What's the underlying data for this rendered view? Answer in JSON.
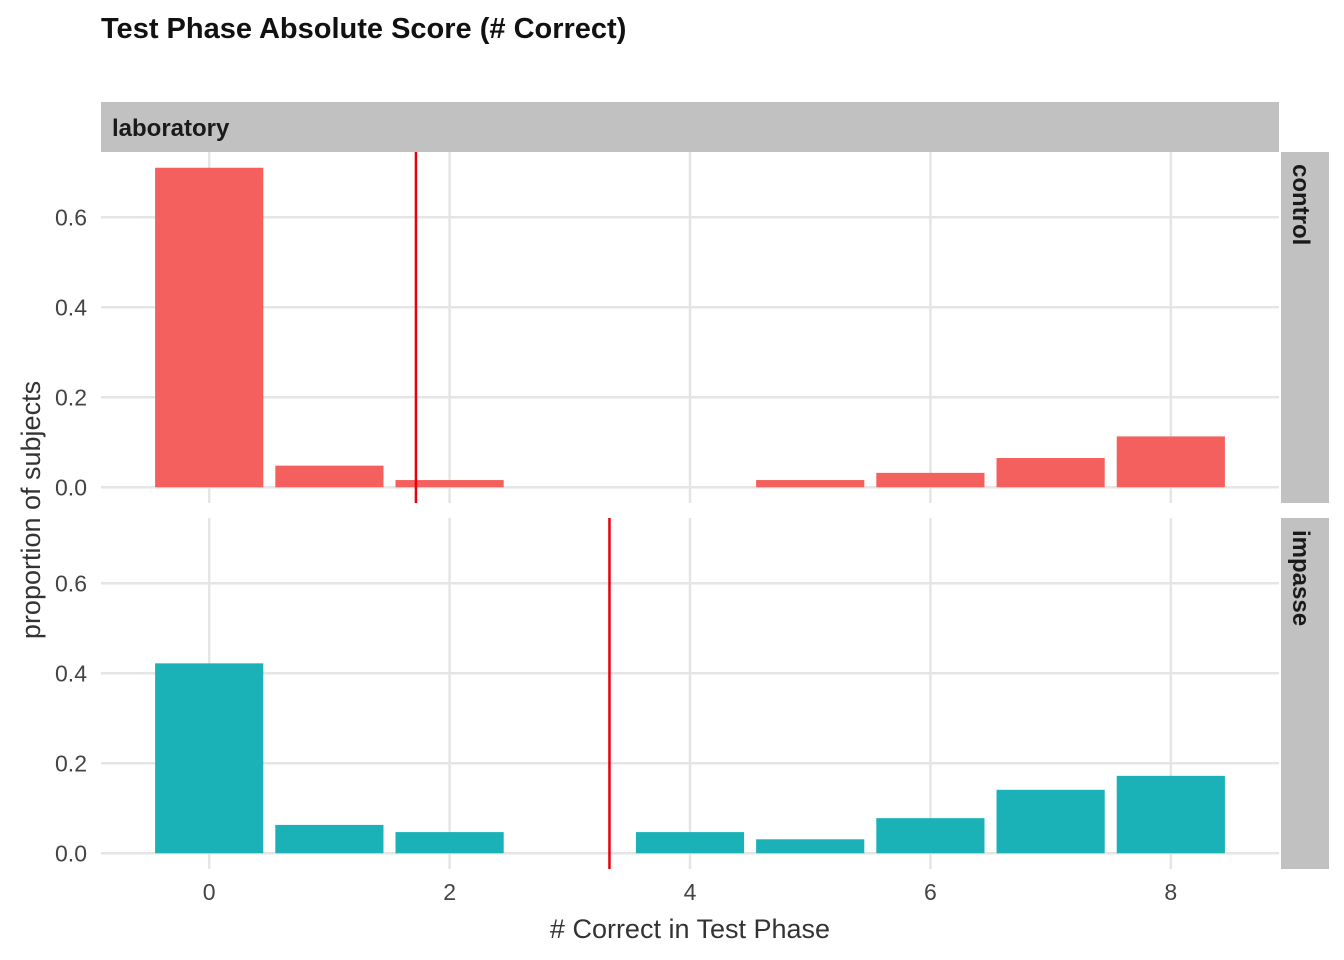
{
  "chart_data": {
    "type": "bar",
    "title": "Test Phase Absolute Score (# Correct)",
    "xlabel": "# Correct in Test Phase",
    "ylabel": "proportion of subjects",
    "column_facet": "laboratory",
    "x_ticks": [
      "0",
      "2",
      "4",
      "6",
      "8"
    ],
    "y_ticks": [
      "0.0",
      "0.2",
      "0.4",
      "0.6"
    ],
    "xlim": [
      -0.9,
      8.9
    ],
    "ylim": [
      -0.035,
      0.745
    ],
    "grid": true,
    "legend": "none",
    "panels": [
      {
        "label": "control",
        "color": "#F4605D",
        "x": [
          0,
          1,
          2,
          3,
          4,
          5,
          6,
          7,
          8
        ],
        "values": [
          0.71,
          0.048,
          0.016,
          0.0,
          0.0,
          0.016,
          0.032,
          0.065,
          0.113
        ],
        "reference_line": {
          "x": 1.72,
          "color": "#E8000B"
        }
      },
      {
        "label": "impasse",
        "color": "#1AB2B7",
        "x": [
          0,
          1,
          2,
          3,
          4,
          5,
          6,
          7,
          8
        ],
        "values": [
          0.422,
          0.063,
          0.047,
          0.0,
          0.047,
          0.031,
          0.078,
          0.141,
          0.172
        ],
        "reference_line": {
          "x": 3.33,
          "color": "#E8000B"
        }
      }
    ]
  }
}
